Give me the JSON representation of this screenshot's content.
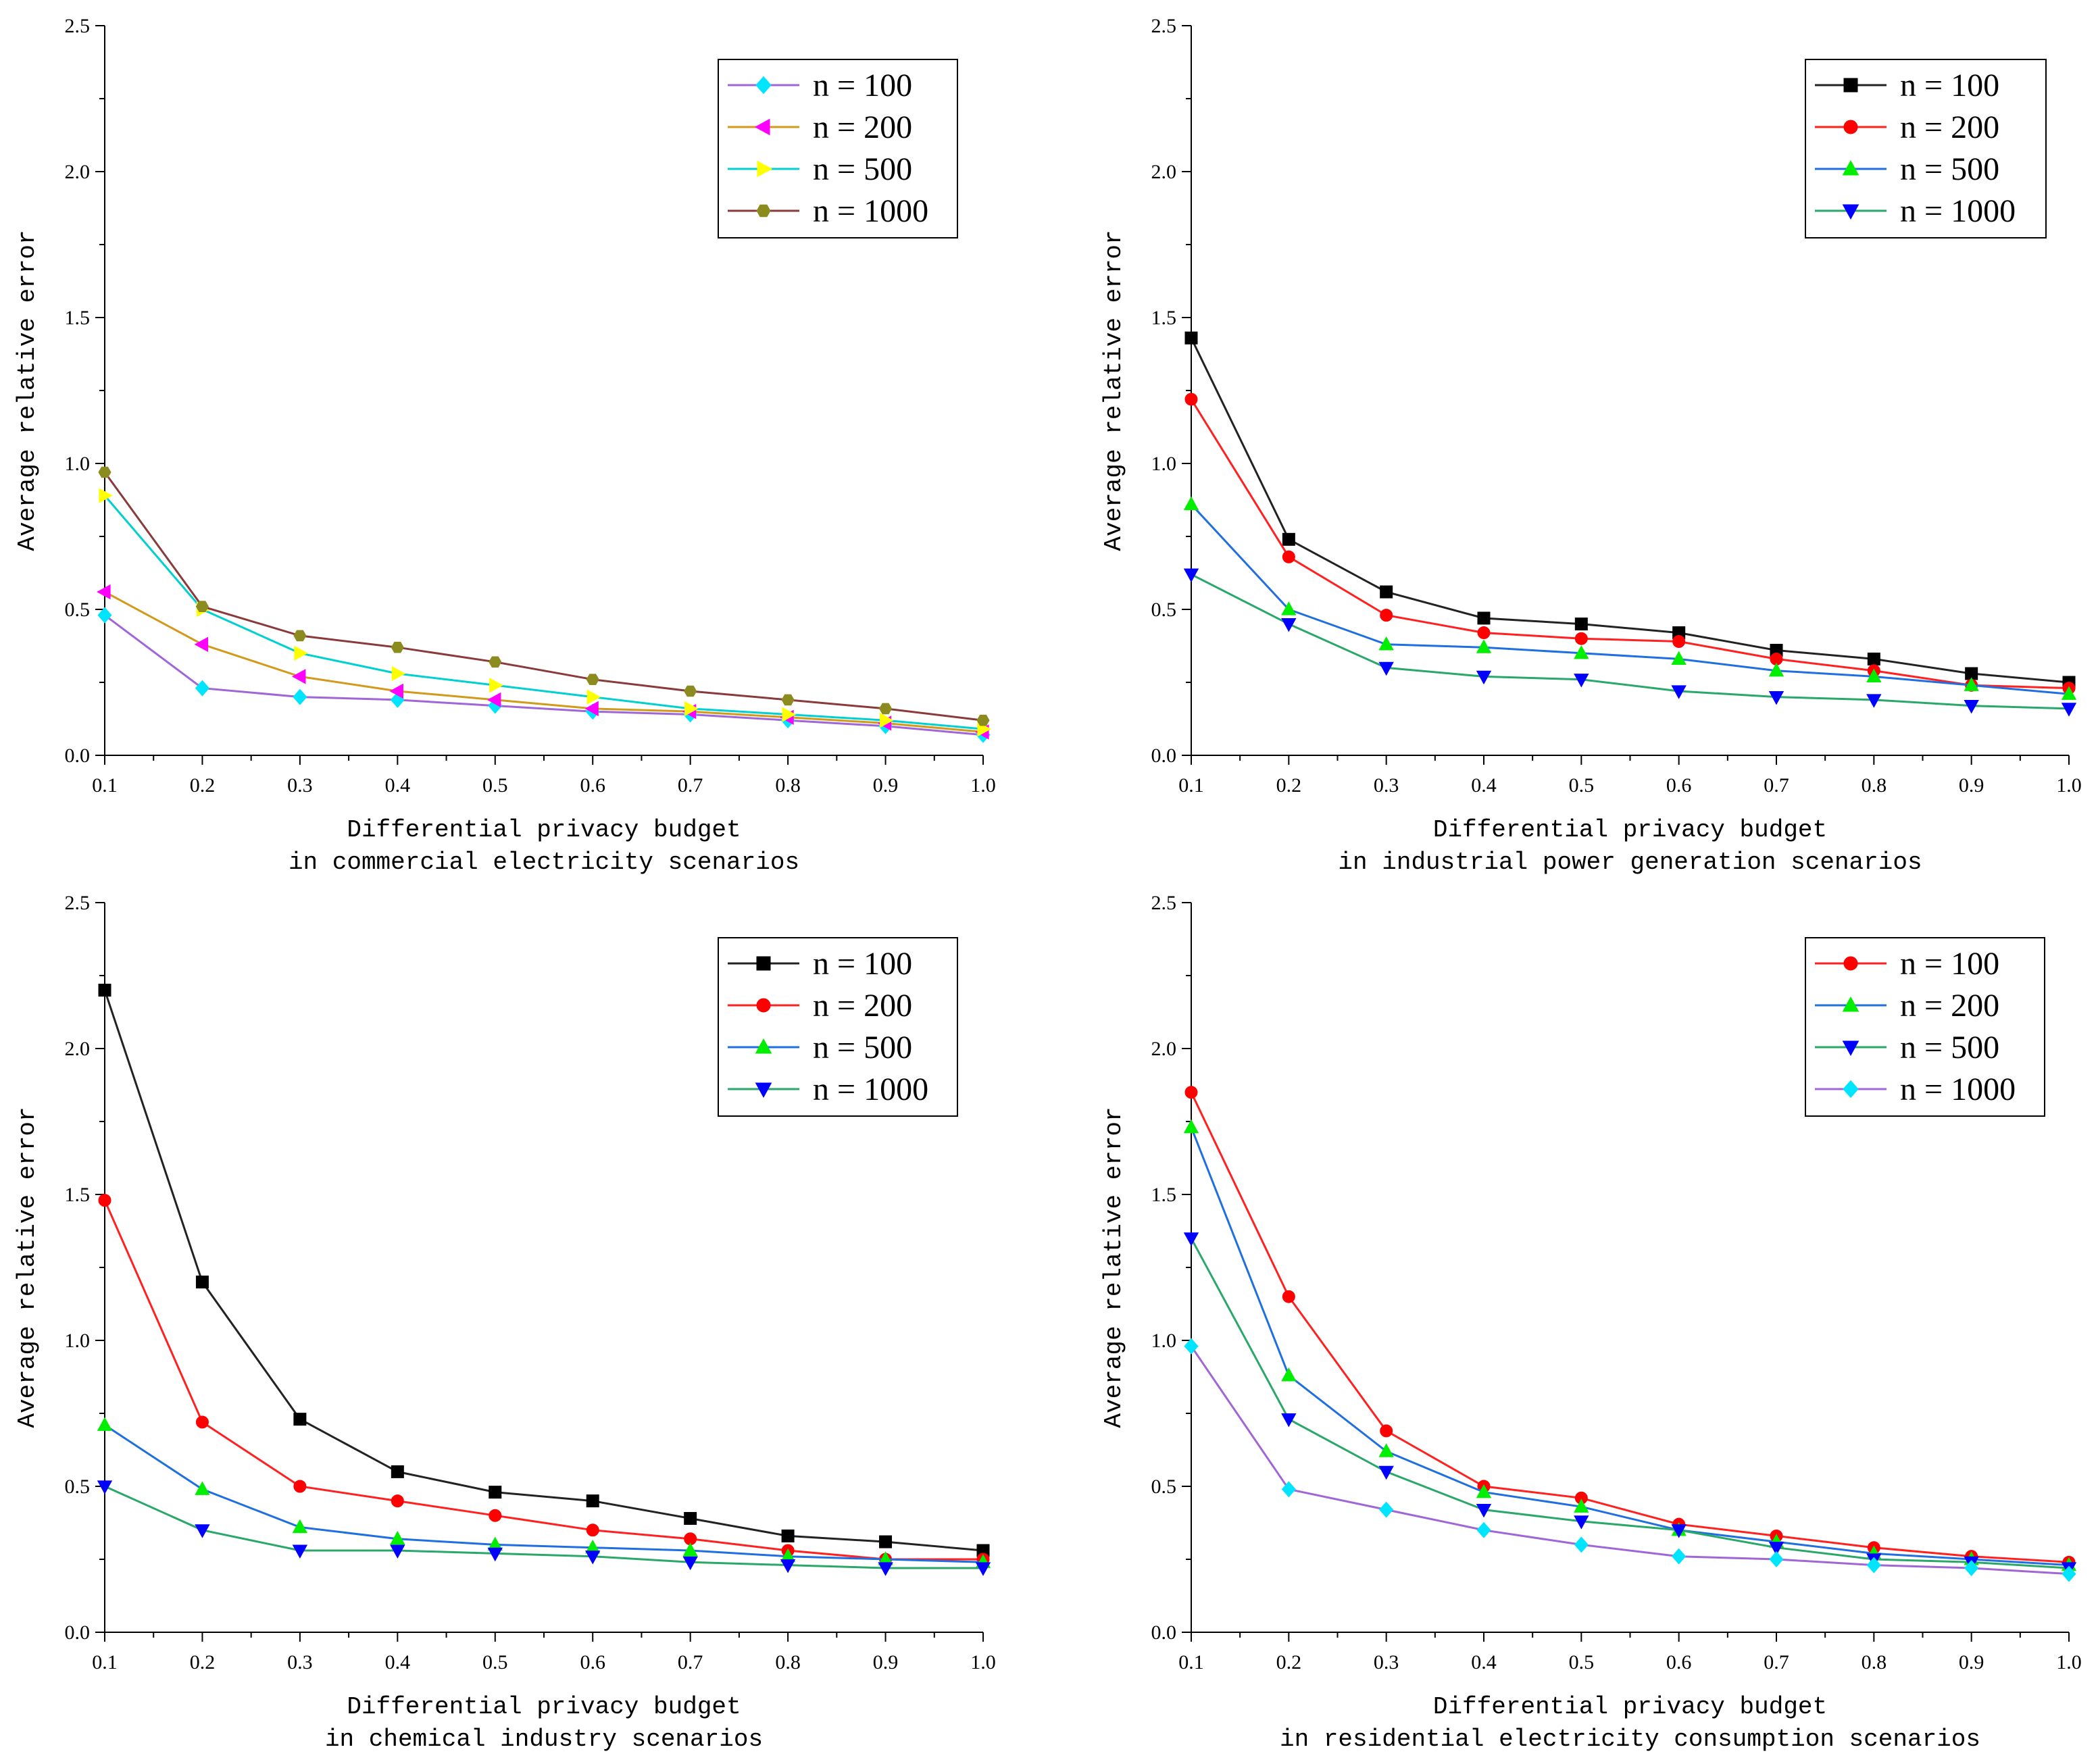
{
  "chart_data": [
    {
      "type": "line",
      "xlabel": "Differential privacy budget",
      "caption": "in commercial electricity scenarios",
      "ylabel": "Average relative error",
      "x": [
        0.1,
        0.2,
        0.3,
        0.4,
        0.5,
        0.6,
        0.7,
        0.8,
        0.9,
        1.0
      ],
      "xticks": [
        "0.1",
        "0.2",
        "0.3",
        "0.4",
        "0.5",
        "0.6",
        "0.7",
        "0.8",
        "0.9",
        "1.0"
      ],
      "yticks": [
        "0.0",
        "0.5",
        "1.0",
        "1.5",
        "2.0",
        "2.5"
      ],
      "xlim": [
        0.1,
        1.0
      ],
      "ylim": [
        0,
        2.5
      ],
      "legend_position": "top-right",
      "series": [
        {
          "name": "n = 100",
          "values": [
            0.48,
            0.23,
            0.2,
            0.19,
            0.17,
            0.15,
            0.14,
            0.12,
            0.1,
            0.07
          ],
          "line_color": "#a066d8",
          "marker_color": "#00e5ff",
          "marker": "diamond"
        },
        {
          "name": "n = 200",
          "values": [
            0.56,
            0.38,
            0.27,
            0.22,
            0.19,
            0.16,
            0.15,
            0.13,
            0.11,
            0.08
          ],
          "line_color": "#d19a1a",
          "marker_color": "#ff00ff",
          "marker": "triangle-left"
        },
        {
          "name": "n = 500",
          "values": [
            0.89,
            0.5,
            0.35,
            0.28,
            0.24,
            0.2,
            0.16,
            0.14,
            0.12,
            0.09
          ],
          "line_color": "#00d0d0",
          "marker_color": "#ffff00",
          "marker": "triangle-right"
        },
        {
          "name": "n = 1000",
          "values": [
            0.97,
            0.51,
            0.41,
            0.37,
            0.32,
            0.26,
            0.22,
            0.19,
            0.16,
            0.12
          ],
          "line_color": "#8a3a3a",
          "marker_color": "#8b8b1f",
          "marker": "hexagon"
        }
      ]
    },
    {
      "type": "line",
      "xlabel": "Differential privacy budget",
      "caption": "in industrial power generation scenarios",
      "ylabel": "Average relative error",
      "x": [
        0.1,
        0.2,
        0.3,
        0.4,
        0.5,
        0.6,
        0.7,
        0.8,
        0.9,
        1.0
      ],
      "xticks": [
        "0.1",
        "0.2",
        "0.3",
        "0.4",
        "0.5",
        "0.6",
        "0.7",
        "0.8",
        "0.9",
        "1.0"
      ],
      "yticks": [
        "0.0",
        "0.5",
        "1.0",
        "1.5",
        "2.0",
        "2.5"
      ],
      "xlim": [
        0.1,
        1.0
      ],
      "ylim": [
        0,
        2.5
      ],
      "legend_position": "top-right",
      "series": [
        {
          "name": "n = 100",
          "values": [
            1.43,
            0.74,
            0.56,
            0.47,
            0.45,
            0.42,
            0.36,
            0.33,
            0.28,
            0.25
          ],
          "line_color": "#222222",
          "marker_color": "#000000",
          "marker": "square"
        },
        {
          "name": "n = 200",
          "values": [
            1.22,
            0.68,
            0.48,
            0.42,
            0.4,
            0.39,
            0.33,
            0.29,
            0.24,
            0.23
          ],
          "line_color": "#ff2020",
          "marker_color": "#ff0000",
          "marker": "circle"
        },
        {
          "name": "n = 500",
          "values": [
            0.86,
            0.5,
            0.38,
            0.37,
            0.35,
            0.33,
            0.29,
            0.27,
            0.24,
            0.21
          ],
          "line_color": "#1f6fe0",
          "marker_color": "#00ee00",
          "marker": "triangle-up"
        },
        {
          "name": "n = 1000",
          "values": [
            0.62,
            0.45,
            0.3,
            0.27,
            0.26,
            0.22,
            0.2,
            0.19,
            0.17,
            0.16
          ],
          "line_color": "#2aa86a",
          "marker_color": "#0000ff",
          "marker": "triangle-down"
        }
      ]
    },
    {
      "type": "line",
      "xlabel": "Differential privacy budget",
      "caption": "in chemical industry scenarios",
      "ylabel": "Average relative error",
      "x": [
        0.1,
        0.2,
        0.3,
        0.4,
        0.5,
        0.6,
        0.7,
        0.8,
        0.9,
        1.0
      ],
      "xticks": [
        "0.1",
        "0.2",
        "0.3",
        "0.4",
        "0.5",
        "0.6",
        "0.7",
        "0.8",
        "0.9",
        "1.0"
      ],
      "yticks": [
        "0.0",
        "0.5",
        "1.0",
        "1.5",
        "2.0",
        "2.5"
      ],
      "xlim": [
        0.1,
        1.0
      ],
      "ylim": [
        0,
        2.5
      ],
      "legend_position": "top-right",
      "series": [
        {
          "name": "n = 100",
          "values": [
            2.2,
            1.2,
            0.73,
            0.55,
            0.48,
            0.45,
            0.39,
            0.33,
            0.31,
            0.28
          ],
          "line_color": "#222222",
          "marker_color": "#000000",
          "marker": "square"
        },
        {
          "name": "n = 200",
          "values": [
            1.48,
            0.72,
            0.5,
            0.45,
            0.4,
            0.35,
            0.32,
            0.28,
            0.25,
            0.25
          ],
          "line_color": "#ff2020",
          "marker_color": "#ff0000",
          "marker": "circle"
        },
        {
          "name": "n = 500",
          "values": [
            0.71,
            0.49,
            0.36,
            0.32,
            0.3,
            0.29,
            0.28,
            0.26,
            0.25,
            0.24
          ],
          "line_color": "#1f6fe0",
          "marker_color": "#00ee00",
          "marker": "triangle-up"
        },
        {
          "name": "n = 1000",
          "values": [
            0.5,
            0.35,
            0.28,
            0.28,
            0.27,
            0.26,
            0.24,
            0.23,
            0.22,
            0.22
          ],
          "line_color": "#2aa86a",
          "marker_color": "#0000ff",
          "marker": "triangle-down"
        }
      ]
    },
    {
      "type": "line",
      "xlabel": "Differential privacy budget",
      "caption": "in residential electricity consumption scenarios",
      "ylabel": "Average relative error",
      "x": [
        0.1,
        0.2,
        0.3,
        0.4,
        0.5,
        0.6,
        0.7,
        0.8,
        0.9,
        1.0
      ],
      "xticks": [
        "0.1",
        "0.2",
        "0.3",
        "0.4",
        "0.5",
        "0.6",
        "0.7",
        "0.8",
        "0.9",
        "1.0"
      ],
      "yticks": [
        "0.0",
        "0.5",
        "1.0",
        "1.5",
        "2.0",
        "2.5"
      ],
      "xlim": [
        0.1,
        1.0
      ],
      "ylim": [
        0,
        2.5
      ],
      "legend_position": "top-right",
      "series": [
        {
          "name": "n = 100",
          "values": [
            1.85,
            1.15,
            0.69,
            0.5,
            0.46,
            0.37,
            0.33,
            0.29,
            0.26,
            0.24
          ],
          "line_color": "#ff2020",
          "marker_color": "#ff0000",
          "marker": "circle"
        },
        {
          "name": "n = 200",
          "values": [
            1.73,
            0.88,
            0.62,
            0.48,
            0.43,
            0.35,
            0.31,
            0.27,
            0.25,
            0.23
          ],
          "line_color": "#1f6fe0",
          "marker_color": "#00ee00",
          "marker": "triangle-up"
        },
        {
          "name": "n = 500",
          "values": [
            1.35,
            0.73,
            0.55,
            0.42,
            0.38,
            0.35,
            0.29,
            0.25,
            0.24,
            0.22
          ],
          "line_color": "#2aa86a",
          "marker_color": "#0000ff",
          "marker": "triangle-down"
        },
        {
          "name": "n = 1000",
          "values": [
            0.98,
            0.49,
            0.42,
            0.35,
            0.3,
            0.26,
            0.25,
            0.23,
            0.22,
            0.2
          ],
          "line_color": "#a066d8",
          "marker_color": "#00e5ff",
          "marker": "diamond"
        }
      ]
    }
  ]
}
